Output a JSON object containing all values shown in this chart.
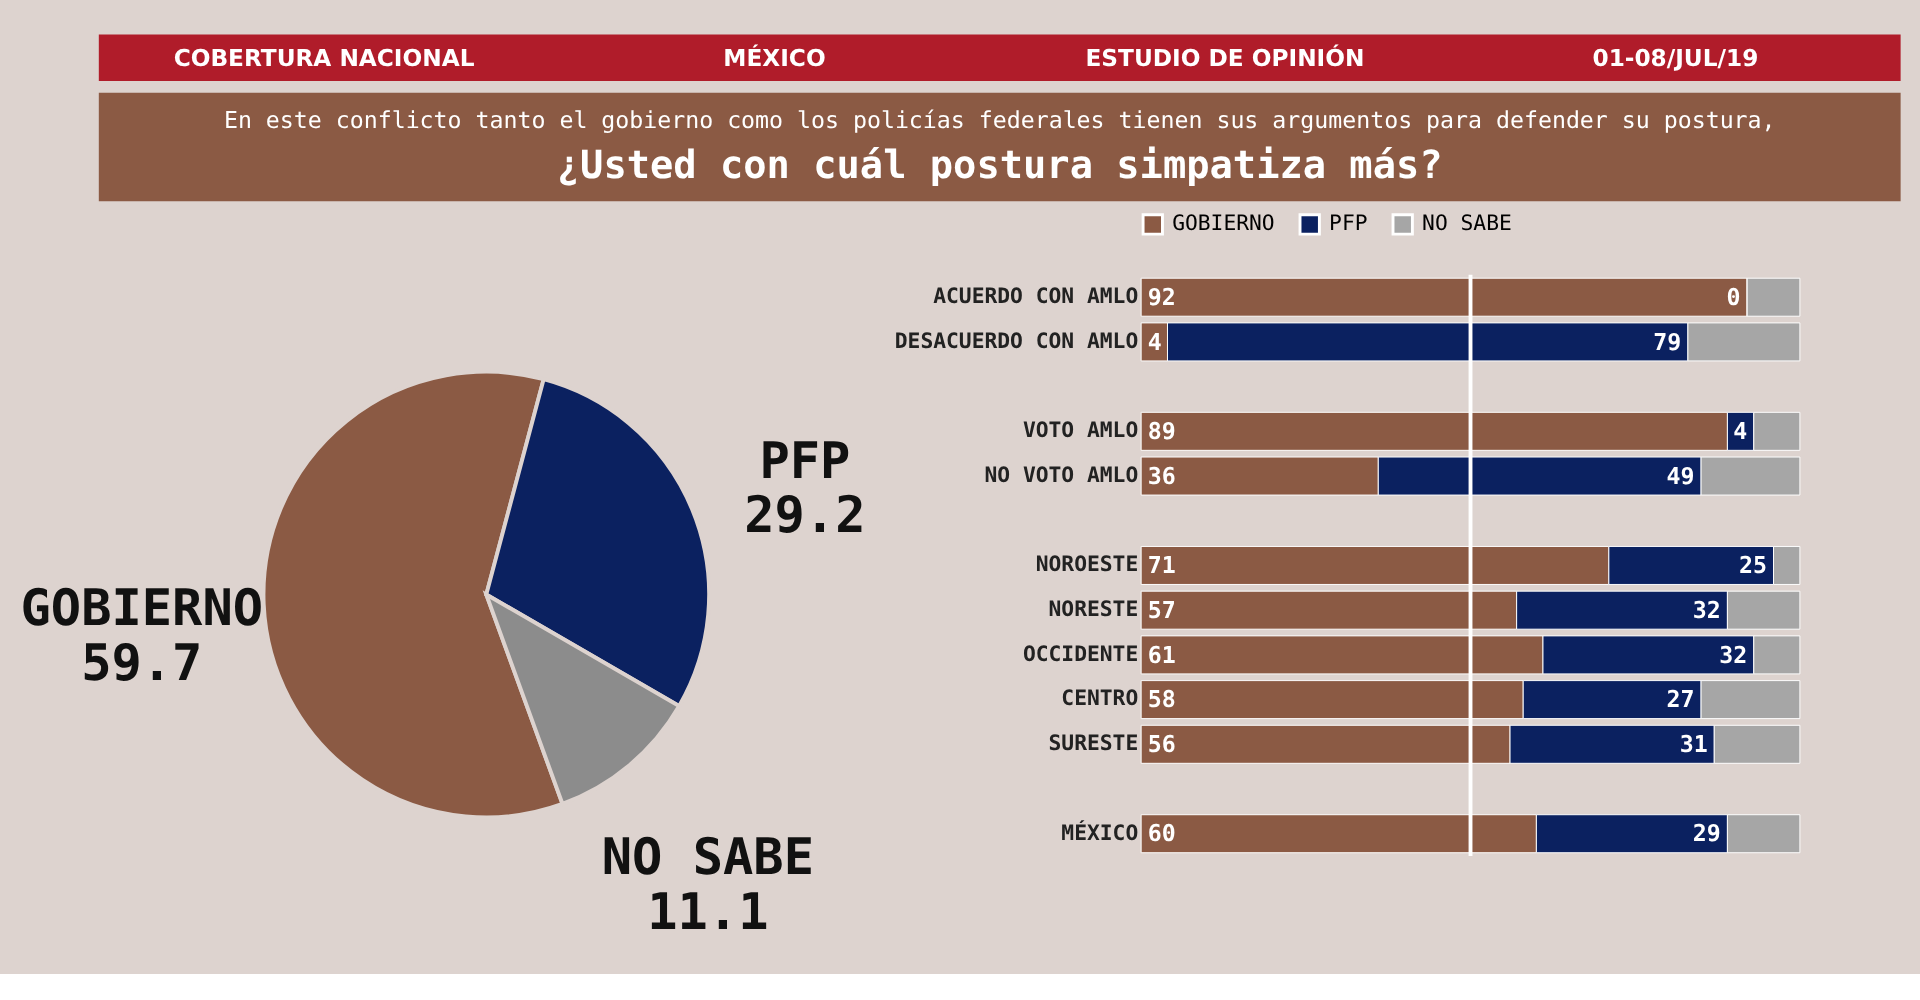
{
  "chart_data": [
    {
      "type": "pie",
      "title": "¿Usted con cuál postura simpatiza más?",
      "subtitle": "En este conflicto tanto el gobierno como los policías federales tienen sus argumentos para defender su postura,",
      "annotations": [
        "COBERTURA NACIONAL",
        "MÉXICO",
        "ESTUDIO DE OPINIÓN",
        "01-08/JUL/19"
      ],
      "categories": [
        "GOBIERNO",
        "PFP",
        "NO SABE"
      ],
      "values": [
        59.7,
        29.2,
        11.1
      ],
      "colors": [
        "#8b5a44",
        "#0b2160",
        "#8c8c8c"
      ],
      "legend": false,
      "data_labels": true
    },
    {
      "type": "bar",
      "orientation": "horizontal",
      "stacked": true,
      "legend": "top",
      "tick_labels": "y",
      "xlim": [
        0,
        100
      ],
      "categories": [
        "ACUERDO CON AMLO",
        "DESACUERDO CON AMLO",
        null,
        "VOTO AMLO",
        "NO VOTO AMLO",
        null,
        "NOROESTE",
        "NORESTE",
        "OCCIDENTE",
        "CENTRO",
        "SURESTE",
        null,
        "MÉXICO"
      ],
      "series": [
        {
          "name": "GOBIERNO",
          "color": "#8b5a44",
          "values": [
            92,
            4,
            null,
            89,
            36,
            null,
            71,
            57,
            61,
            58,
            56,
            null,
            60
          ],
          "value_labels": [
            "92",
            "4",
            null,
            "89",
            "36",
            null,
            "71",
            "57",
            "61",
            "58",
            "56",
            null,
            "60"
          ]
        },
        {
          "name": "PFP",
          "color": "#0b2160",
          "values": [
            0,
            79,
            null,
            4,
            49,
            null,
            25,
            32,
            32,
            27,
            31,
            null,
            29
          ],
          "value_labels": [
            "0",
            "79",
            null,
            "4",
            "49",
            null,
            "25",
            "32",
            "32",
            "27",
            "31",
            null,
            "29"
          ]
        },
        {
          "name": "NO SABE",
          "color": "#a6a6a6",
          "values": [
            8,
            17,
            null,
            7,
            15,
            null,
            4,
            11,
            7,
            15,
            13,
            null,
            11
          ]
        }
      ],
      "ref_lines": [
        {
          "axis": "x",
          "value": 50,
          "color": "#ffffff"
        }
      ]
    }
  ]
}
